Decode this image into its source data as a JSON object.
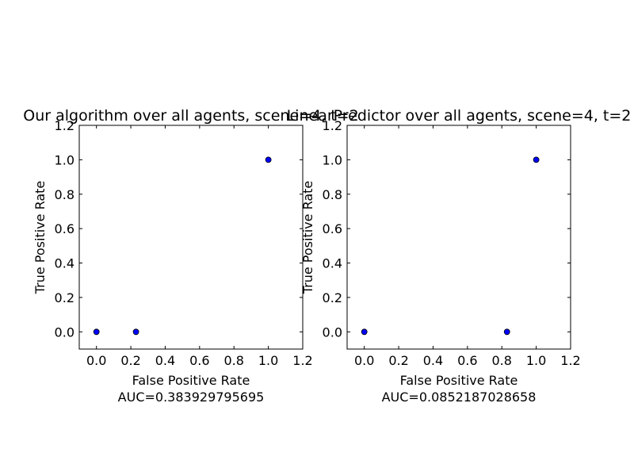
{
  "chart_data": [
    {
      "type": "scatter",
      "title": "Our algorithm over all agents, scene=4,  t=2",
      "xlabel": "False Positive Rate",
      "xlabel_line2": "AUC=0.383929795695",
      "ylabel": "True Positive Rate",
      "xlim": [
        -0.1,
        1.2
      ],
      "ylim": [
        -0.1,
        1.2
      ],
      "xticks": [
        "0.0",
        "0.2",
        "0.4",
        "0.6",
        "0.8",
        "1.0",
        "1.2"
      ],
      "yticks": [
        "0.0",
        "0.2",
        "0.4",
        "0.6",
        "0.8",
        "1.0",
        "1.2"
      ],
      "grid": false,
      "marker_color": "#0000ff",
      "points": [
        {
          "x": 0.0,
          "y": 0.0
        },
        {
          "x": 0.23,
          "y": 0.0
        },
        {
          "x": 1.0,
          "y": 1.0
        }
      ]
    },
    {
      "type": "scatter",
      "title": "LinearPredictor over all agents, scene=4,  t=2",
      "xlabel": "False Positive Rate",
      "xlabel_line2": "AUC=0.0852187028658",
      "ylabel": "True Positive Rate",
      "xlim": [
        -0.1,
        1.2
      ],
      "ylim": [
        -0.1,
        1.2
      ],
      "xticks": [
        "0.0",
        "0.2",
        "0.4",
        "0.6",
        "0.8",
        "1.0",
        "1.2"
      ],
      "yticks": [
        "0.0",
        "0.2",
        "0.4",
        "0.6",
        "0.8",
        "1.0",
        "1.2"
      ],
      "grid": false,
      "marker_color": "#0000ff",
      "points": [
        {
          "x": 0.0,
          "y": 0.0
        },
        {
          "x": 0.83,
          "y": 0.0
        },
        {
          "x": 1.0,
          "y": 1.0
        }
      ]
    }
  ]
}
